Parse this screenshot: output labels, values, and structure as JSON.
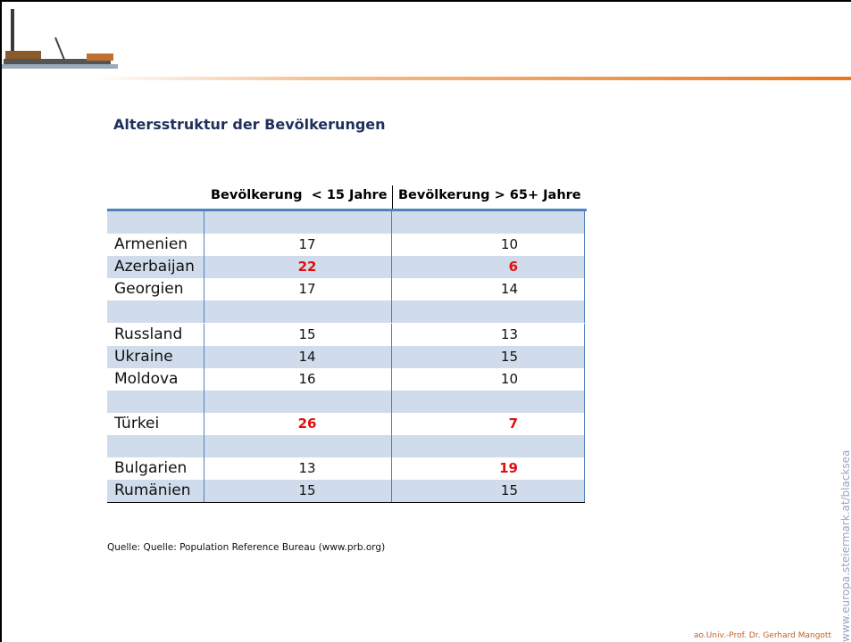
{
  "title": "Altersstruktur der Bevölkerungen",
  "table": {
    "header": [
      "Bevölkerung  < 15 Jahre",
      "Bevölkerung > 65+ Jahre"
    ],
    "groups": [
      [
        {
          "label": "Armenien",
          "values": [
            17,
            10
          ],
          "emphasis": [
            false,
            false
          ]
        },
        {
          "label": "Azerbaijan",
          "values": [
            22,
            6
          ],
          "emphasis": [
            true,
            true
          ]
        },
        {
          "label": "Georgien",
          "values": [
            17,
            14
          ],
          "emphasis": [
            false,
            false
          ]
        }
      ],
      [
        {
          "label": "Russland",
          "values": [
            15,
            13
          ],
          "emphasis": [
            false,
            false
          ]
        },
        {
          "label": "Ukraine",
          "values": [
            14,
            15
          ],
          "emphasis": [
            false,
            false
          ]
        },
        {
          "label": "Moldova",
          "values": [
            16,
            10
          ],
          "emphasis": [
            false,
            false
          ]
        }
      ],
      [
        {
          "label": "Türkei",
          "values": [
            26,
            7
          ],
          "emphasis": [
            true,
            true
          ]
        }
      ],
      [
        {
          "label": "Bulgarien",
          "values": [
            13,
            19
          ],
          "emphasis": [
            false,
            true
          ]
        },
        {
          "label": "Rumänien",
          "values": [
            15,
            15
          ],
          "emphasis": [
            false,
            false
          ]
        }
      ]
    ]
  },
  "source": "Quelle: Quelle: Population Reference Bureau (www.prb.org)",
  "author": "ao.Univ.-Prof. Dr. Gerhard Mangott",
  "side_text": "www.europa.steiermark.at/blacksea"
}
